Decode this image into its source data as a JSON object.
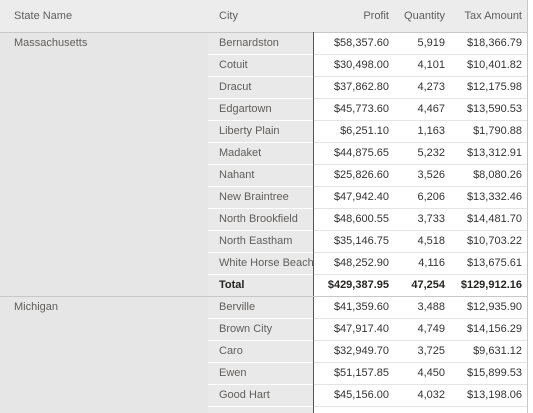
{
  "header": [
    "State Name",
    "City",
    "Profit",
    "Quantity",
    "Tax Amount"
  ],
  "groups": [
    {
      "state": "Massachusetts",
      "rows": [
        [
          "Bernardston",
          "$58,357.60",
          "5,919",
          "$18,366.79"
        ],
        [
          "Cotuit",
          "$30,498.00",
          "4,101",
          "$10,401.82"
        ],
        [
          "Dracut",
          "$37,862.80",
          "4,273",
          "$12,175.98"
        ],
        [
          "Edgartown",
          "$45,773.60",
          "4,467",
          "$13,590.53"
        ],
        [
          "Liberty Plain",
          "$6,251.10",
          "1,163",
          "$1,790.88"
        ],
        [
          "Madaket",
          "$44,875.65",
          "5,232",
          "$13,312.91"
        ],
        [
          "Nahant",
          "$25,826.60",
          "3,526",
          "$8,080.26"
        ],
        [
          "New Braintree",
          "$47,942.40",
          "6,206",
          "$13,332.46"
        ],
        [
          "North Brookfield",
          "$48,600.55",
          "3,733",
          "$14,481.70"
        ],
        [
          "North Eastham",
          "$35,146.75",
          "4,518",
          "$10,703.22"
        ],
        [
          "White Horse Beach",
          "$48,252.90",
          "4,116",
          "$13,675.61"
        ]
      ],
      "total": [
        "Total",
        "$429,387.95",
        "47,254",
        "$129,912.16"
      ]
    },
    {
      "state": "Michigan",
      "rows": [
        [
          "Berville",
          "$41,359.60",
          "3,488",
          "$12,935.90"
        ],
        [
          "Brown City",
          "$47,917.40",
          "4,749",
          "$14,156.29"
        ],
        [
          "Caro",
          "$32,949.70",
          "3,725",
          "$9,631.12"
        ],
        [
          "Ewen",
          "$51,157.85",
          "4,450",
          "$15,899.53"
        ],
        [
          "Good Hart",
          "$45,156.00",
          "4,032",
          "$13,198.06"
        ]
      ]
    }
  ]
}
